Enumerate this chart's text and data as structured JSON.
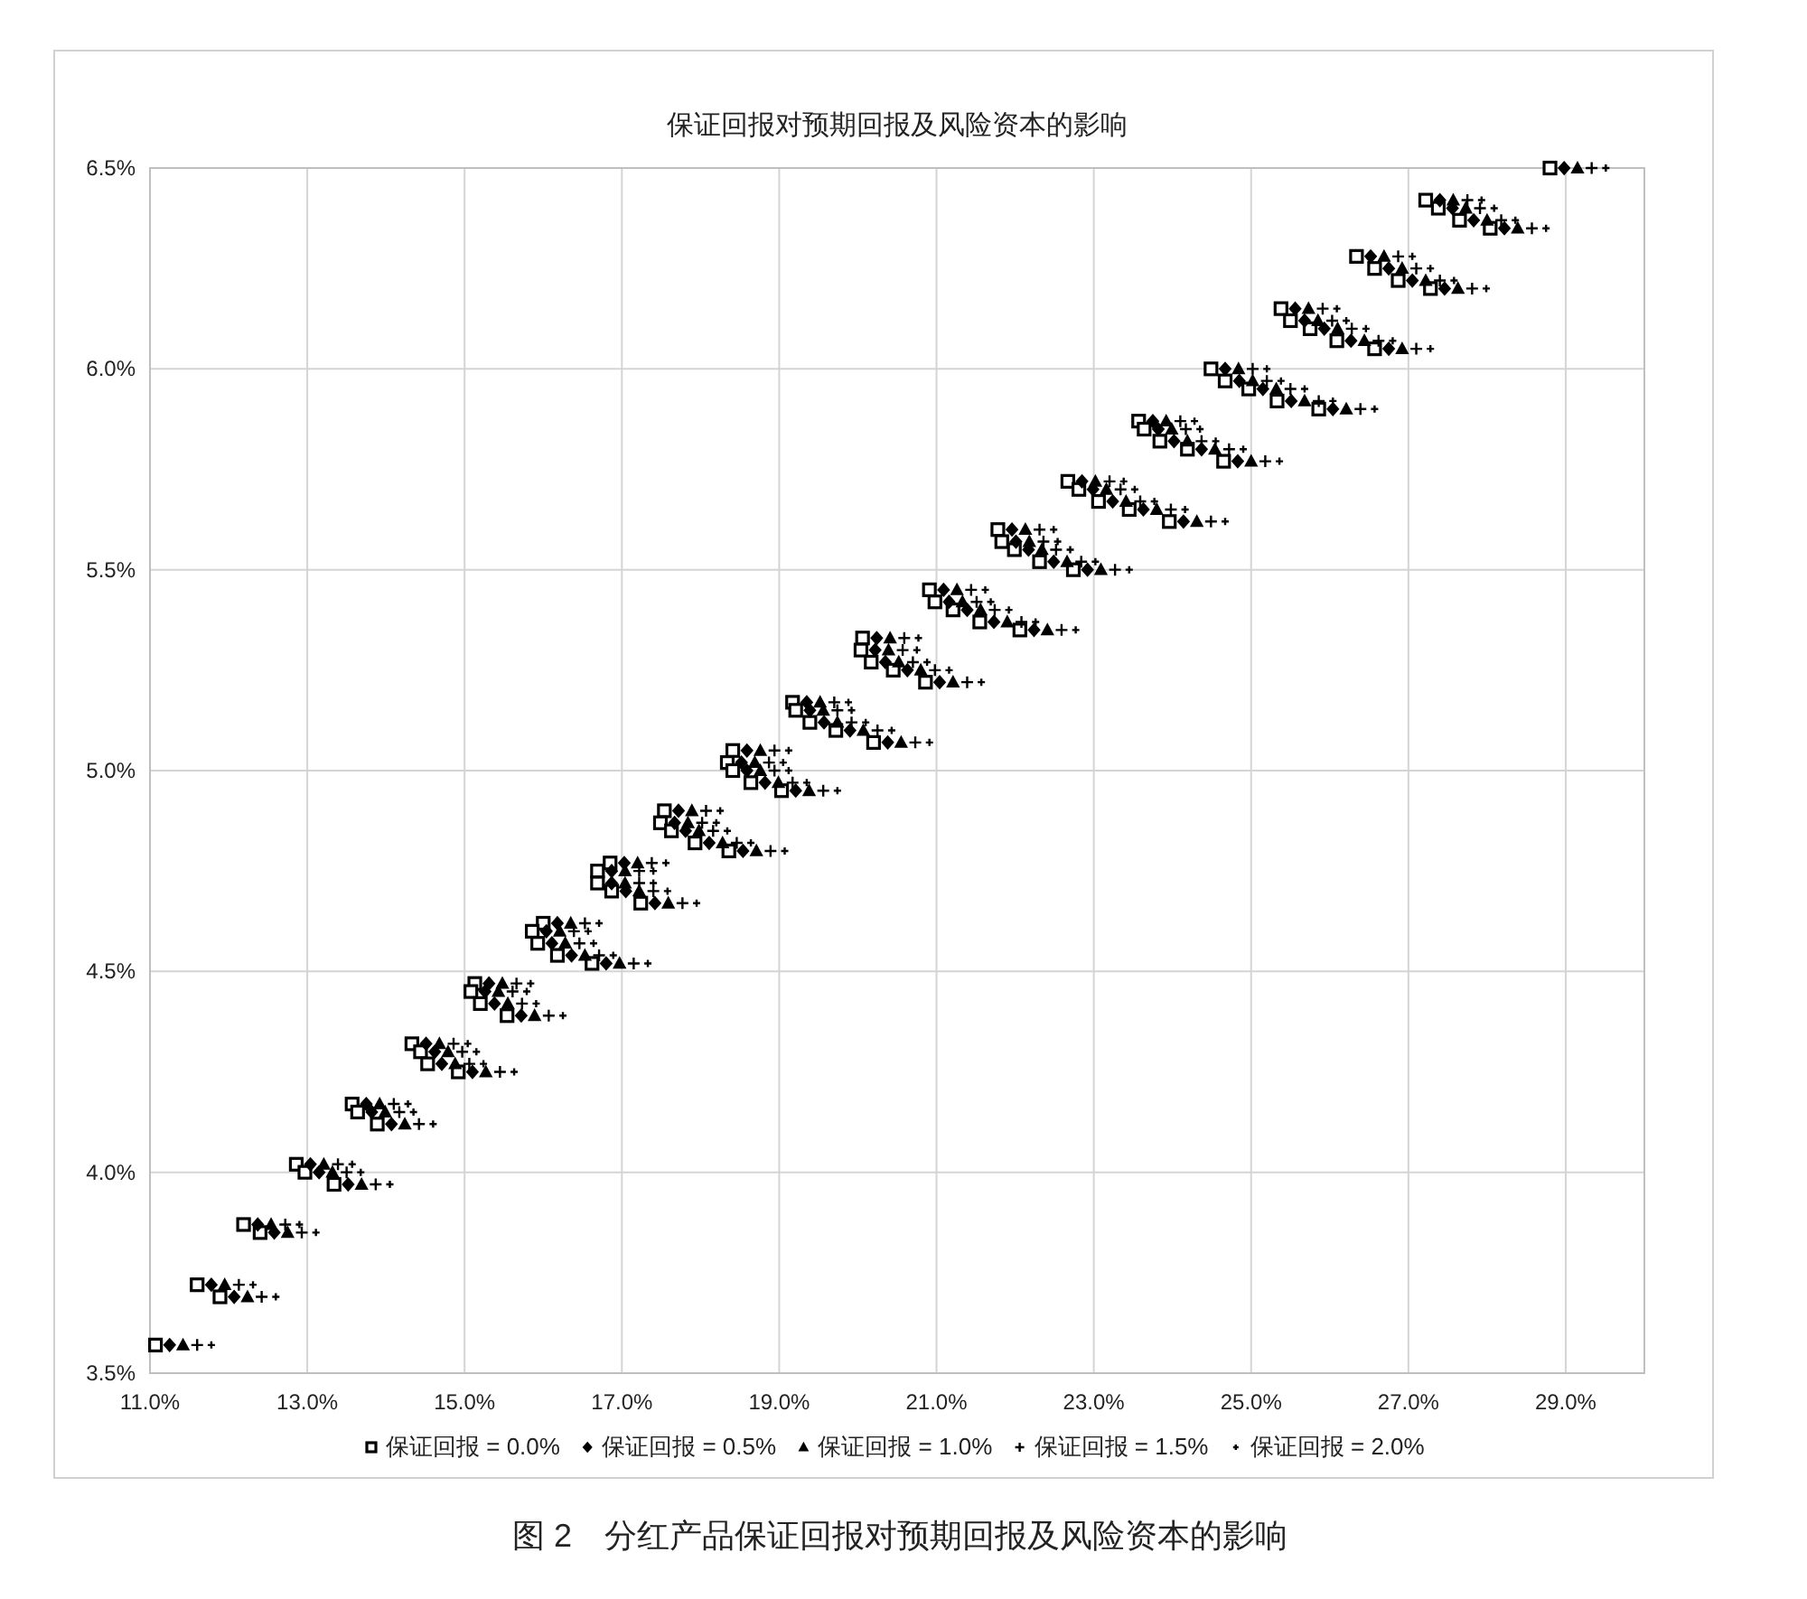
{
  "chart_data": {
    "type": "scatter",
    "title": "保证回报对预期回报及风险资本的影响",
    "annotations": [
      "图 2　分红产品保证回报对预期回报及风险资本的影响"
    ],
    "xlim": [
      11,
      30
    ],
    "ylim": [
      3.5,
      6.5
    ],
    "xticks": [
      {
        "value": 11,
        "label": "11.0%"
      },
      {
        "value": 13,
        "label": "13.0%"
      },
      {
        "value": 15,
        "label": "15.0%"
      },
      {
        "value": 17,
        "label": "17.0%"
      },
      {
        "value": 19,
        "label": "19.0%"
      },
      {
        "value": 21,
        "label": "21.0%"
      },
      {
        "value": 23,
        "label": "23.0%"
      },
      {
        "value": 25,
        "label": "25.0%"
      },
      {
        "value": 27,
        "label": "27.0%"
      },
      {
        "value": 29,
        "label": "29.0%"
      }
    ],
    "yticks": [
      {
        "value": 3.5,
        "label": "3.5%"
      },
      {
        "value": 4,
        "label": "4.0%"
      },
      {
        "value": 4.5,
        "label": "4.5%"
      },
      {
        "value": 5,
        "label": "5.0%"
      },
      {
        "value": 5.5,
        "label": "5.5%"
      },
      {
        "value": 6,
        "label": "6.0%"
      },
      {
        "value": 6.5,
        "label": "6.5%"
      }
    ],
    "grid": true,
    "legend": "bottom",
    "series": [
      {
        "name": "保证回报 = 0.0%",
        "color": "#000000",
        "marker": "square",
        "x": [
          11.07,
          11.6,
          11.89,
          12.19,
          12.4,
          12.86,
          12.97,
          13.34,
          13.57,
          13.64,
          13.89,
          14.33,
          14.44,
          14.53,
          14.92,
          15.13,
          15.08,
          15.2,
          15.54,
          16.0,
          15.86,
          15.93,
          16.18,
          16.62,
          16.85,
          16.69,
          16.69,
          16.87,
          17.24,
          17.54,
          17.49,
          17.63,
          17.93,
          18.36,
          18.41,
          18.34,
          18.41,
          18.64,
          19.03,
          19.17,
          19.21,
          19.39,
          19.72,
          20.2,
          20.06,
          20.04,
          20.17,
          20.45,
          20.86,
          20.91,
          20.98,
          21.21,
          21.55,
          22.06,
          21.78,
          21.83,
          21.99,
          22.31,
          22.74,
          22.67,
          22.81,
          23.06,
          23.45,
          23.96,
          23.57,
          23.64,
          23.84,
          24.19,
          24.65,
          24.49,
          24.67,
          24.97,
          25.33,
          25.86,
          25.38,
          25.5,
          25.75,
          26.09,
          26.57,
          26.34,
          26.57,
          26.87,
          27.28,
          27.22,
          27.38,
          27.65,
          28.04,
          28.8
        ],
        "values": [
          3.57,
          3.72,
          3.69,
          3.87,
          3.85,
          4.02,
          4.0,
          3.97,
          4.17,
          4.15,
          4.12,
          4.32,
          4.3,
          4.27,
          4.25,
          4.47,
          4.45,
          4.42,
          4.39,
          4.62,
          4.6,
          4.57,
          4.54,
          4.52,
          4.77,
          4.75,
          4.72,
          4.7,
          4.67,
          4.9,
          4.87,
          4.85,
          4.82,
          4.8,
          5.05,
          5.02,
          5.0,
          4.97,
          4.95,
          5.17,
          5.15,
          5.12,
          5.1,
          5.07,
          5.33,
          5.3,
          5.27,
          5.25,
          5.22,
          5.45,
          5.42,
          5.4,
          5.37,
          5.35,
          5.6,
          5.57,
          5.55,
          5.52,
          5.5,
          5.72,
          5.7,
          5.67,
          5.65,
          5.62,
          5.87,
          5.85,
          5.82,
          5.8,
          5.77,
          6.0,
          5.97,
          5.95,
          5.92,
          5.9,
          6.15,
          6.12,
          6.1,
          6.07,
          6.05,
          6.28,
          6.25,
          6.22,
          6.2,
          6.42,
          6.4,
          6.37,
          6.35,
          6.5
        ]
      },
      {
        "name": "保证回报 = 0.5%",
        "color": "#000000",
        "marker": "diamond",
        "x": [
          11.25,
          11.78,
          12.07,
          12.37,
          12.58,
          13.04,
          13.15,
          13.52,
          13.75,
          13.82,
          14.07,
          14.51,
          14.62,
          14.71,
          15.1,
          15.31,
          15.26,
          15.38,
          15.72,
          16.18,
          16.04,
          16.11,
          16.36,
          16.8,
          17.03,
          16.87,
          16.87,
          17.05,
          17.42,
          17.72,
          17.67,
          17.81,
          18.11,
          18.54,
          18.59,
          18.52,
          18.59,
          18.82,
          19.21,
          19.35,
          19.39,
          19.57,
          19.9,
          20.38,
          20.24,
          20.22,
          20.35,
          20.63,
          21.04,
          21.09,
          21.16,
          21.39,
          21.73,
          22.24,
          21.96,
          22.01,
          22.17,
          22.49,
          22.92,
          22.85,
          22.99,
          23.24,
          23.63,
          24.14,
          23.75,
          23.82,
          24.02,
          24.37,
          24.83,
          24.67,
          24.85,
          25.15,
          25.51,
          26.04,
          25.56,
          25.68,
          25.93,
          26.27,
          26.75,
          26.52,
          26.75,
          27.05,
          27.46,
          27.4,
          27.56,
          27.83,
          28.22,
          28.98
        ],
        "values": [
          3.57,
          3.72,
          3.69,
          3.87,
          3.85,
          4.02,
          4.0,
          3.97,
          4.17,
          4.15,
          4.12,
          4.32,
          4.3,
          4.27,
          4.25,
          4.47,
          4.45,
          4.42,
          4.39,
          4.62,
          4.6,
          4.57,
          4.54,
          4.52,
          4.77,
          4.75,
          4.72,
          4.7,
          4.67,
          4.9,
          4.87,
          4.85,
          4.82,
          4.8,
          5.05,
          5.02,
          5.0,
          4.97,
          4.95,
          5.17,
          5.15,
          5.12,
          5.1,
          5.07,
          5.33,
          5.3,
          5.27,
          5.25,
          5.22,
          5.45,
          5.42,
          5.4,
          5.37,
          5.35,
          5.6,
          5.57,
          5.55,
          5.52,
          5.5,
          5.72,
          5.7,
          5.67,
          5.65,
          5.62,
          5.87,
          5.85,
          5.82,
          5.8,
          5.77,
          6.0,
          5.97,
          5.95,
          5.92,
          5.9,
          6.15,
          6.12,
          6.1,
          6.07,
          6.05,
          6.28,
          6.25,
          6.22,
          6.2,
          6.42,
          6.4,
          6.37,
          6.35,
          6.5
        ]
      },
      {
        "name": "保证回报 = 1.0%",
        "color": "#000000",
        "marker": "triangle",
        "x": [
          11.42,
          11.95,
          12.24,
          12.54,
          12.75,
          13.21,
          13.32,
          13.69,
          13.92,
          13.99,
          14.24,
          14.68,
          14.79,
          14.88,
          15.27,
          15.48,
          15.43,
          15.55,
          15.89,
          16.35,
          16.21,
          16.28,
          16.53,
          16.97,
          17.2,
          17.04,
          17.04,
          17.22,
          17.59,
          17.89,
          17.84,
          17.98,
          18.28,
          18.71,
          18.76,
          18.69,
          18.76,
          18.99,
          19.38,
          19.52,
          19.56,
          19.74,
          20.07,
          20.55,
          20.41,
          20.39,
          20.52,
          20.8,
          21.21,
          21.26,
          21.33,
          21.56,
          21.9,
          22.41,
          22.13,
          22.18,
          22.34,
          22.66,
          23.09,
          23.02,
          23.16,
          23.41,
          23.8,
          24.31,
          23.92,
          23.99,
          24.19,
          24.54,
          25.0,
          24.84,
          25.02,
          25.32,
          25.68,
          26.21,
          25.73,
          25.85,
          26.1,
          26.44,
          26.92,
          26.69,
          26.92,
          27.22,
          27.63,
          27.57,
          27.73,
          28.0,
          28.39,
          29.15
        ],
        "values": [
          3.57,
          3.72,
          3.69,
          3.87,
          3.85,
          4.02,
          4.0,
          3.97,
          4.17,
          4.15,
          4.12,
          4.32,
          4.3,
          4.27,
          4.25,
          4.47,
          4.45,
          4.42,
          4.39,
          4.62,
          4.6,
          4.57,
          4.54,
          4.52,
          4.77,
          4.75,
          4.72,
          4.7,
          4.67,
          4.9,
          4.87,
          4.85,
          4.82,
          4.8,
          5.05,
          5.02,
          5.0,
          4.97,
          4.95,
          5.17,
          5.15,
          5.12,
          5.1,
          5.07,
          5.33,
          5.3,
          5.27,
          5.25,
          5.22,
          5.45,
          5.42,
          5.4,
          5.37,
          5.35,
          5.6,
          5.57,
          5.55,
          5.52,
          5.5,
          5.72,
          5.7,
          5.67,
          5.65,
          5.62,
          5.87,
          5.85,
          5.82,
          5.8,
          5.77,
          6.0,
          5.97,
          5.95,
          5.92,
          5.9,
          6.15,
          6.12,
          6.1,
          6.07,
          6.05,
          6.28,
          6.25,
          6.22,
          6.2,
          6.42,
          6.4,
          6.37,
          6.35,
          6.5
        ]
      },
      {
        "name": "保证回报 = 1.5%",
        "color": "#000000",
        "marker": "cross",
        "x": [
          11.6,
          12.13,
          12.42,
          12.72,
          12.93,
          13.39,
          13.5,
          13.87,
          14.1,
          14.17,
          14.42,
          14.86,
          14.97,
          15.06,
          15.45,
          15.66,
          15.61,
          15.73,
          16.07,
          16.53,
          16.39,
          16.46,
          16.71,
          17.15,
          17.38,
          17.22,
          17.22,
          17.4,
          17.77,
          18.07,
          18.02,
          18.16,
          18.46,
          18.89,
          18.94,
          18.87,
          18.94,
          19.17,
          19.56,
          19.7,
          19.74,
          19.92,
          20.25,
          20.73,
          20.59,
          20.57,
          20.7,
          20.98,
          21.39,
          21.44,
          21.51,
          21.74,
          22.08,
          22.59,
          22.31,
          22.36,
          22.52,
          22.84,
          23.27,
          23.2,
          23.34,
          23.59,
          23.98,
          24.49,
          24.1,
          24.17,
          24.37,
          24.72,
          25.18,
          25.02,
          25.2,
          25.5,
          25.86,
          26.39,
          25.91,
          26.03,
          26.28,
          26.62,
          27.1,
          26.87,
          27.1,
          27.4,
          27.81,
          27.75,
          27.91,
          28.18,
          28.57,
          29.33
        ],
        "values": [
          3.57,
          3.72,
          3.69,
          3.87,
          3.85,
          4.02,
          4.0,
          3.97,
          4.17,
          4.15,
          4.12,
          4.32,
          4.3,
          4.27,
          4.25,
          4.47,
          4.45,
          4.42,
          4.39,
          4.62,
          4.6,
          4.57,
          4.54,
          4.52,
          4.77,
          4.75,
          4.72,
          4.7,
          4.67,
          4.9,
          4.87,
          4.85,
          4.82,
          4.8,
          5.05,
          5.02,
          5.0,
          4.97,
          4.95,
          5.17,
          5.15,
          5.12,
          5.1,
          5.07,
          5.33,
          5.3,
          5.27,
          5.25,
          5.22,
          5.45,
          5.42,
          5.4,
          5.37,
          5.35,
          5.6,
          5.57,
          5.55,
          5.52,
          5.5,
          5.72,
          5.7,
          5.67,
          5.65,
          5.62,
          5.87,
          5.85,
          5.82,
          5.8,
          5.77,
          6.0,
          5.97,
          5.95,
          5.92,
          5.9,
          6.15,
          6.12,
          6.1,
          6.07,
          6.05,
          6.28,
          6.25,
          6.22,
          6.2,
          6.42,
          6.4,
          6.37,
          6.35,
          6.5
        ]
      },
      {
        "name": "保证回报 = 2.0%",
        "color": "#000000",
        "marker": "cross",
        "x": [
          11.78,
          12.31,
          12.6,
          12.9,
          13.11,
          13.57,
          13.68,
          14.05,
          14.28,
          14.35,
          14.6,
          15.04,
          15.15,
          15.24,
          15.63,
          15.84,
          15.79,
          15.91,
          16.25,
          16.71,
          16.57,
          16.64,
          16.89,
          17.33,
          17.56,
          17.4,
          17.4,
          17.58,
          17.95,
          18.25,
          18.2,
          18.34,
          18.64,
          19.07,
          19.12,
          19.05,
          19.12,
          19.35,
          19.74,
          19.88,
          19.92,
          20.1,
          20.43,
          20.91,
          20.77,
          20.75,
          20.88,
          21.16,
          21.57,
          21.62,
          21.69,
          21.92,
          22.26,
          22.77,
          22.49,
          22.54,
          22.7,
          23.02,
          23.45,
          23.38,
          23.52,
          23.77,
          24.16,
          24.67,
          24.28,
          24.35,
          24.55,
          24.9,
          25.36,
          25.2,
          25.38,
          25.68,
          26.04,
          26.57,
          26.09,
          26.21,
          26.46,
          26.8,
          27.28,
          27.05,
          27.28,
          27.58,
          27.99,
          27.93,
          28.09,
          28.36,
          28.75,
          29.51
        ],
        "values": [
          3.57,
          3.72,
          3.69,
          3.87,
          3.85,
          4.02,
          4.0,
          3.97,
          4.17,
          4.15,
          4.12,
          4.32,
          4.3,
          4.27,
          4.25,
          4.47,
          4.45,
          4.42,
          4.39,
          4.62,
          4.6,
          4.57,
          4.54,
          4.52,
          4.77,
          4.75,
          4.72,
          4.7,
          4.67,
          4.9,
          4.87,
          4.85,
          4.82,
          4.8,
          5.05,
          5.02,
          5.0,
          4.97,
          4.95,
          5.17,
          5.15,
          5.12,
          5.1,
          5.07,
          5.33,
          5.3,
          5.27,
          5.25,
          5.22,
          5.45,
          5.42,
          5.4,
          5.37,
          5.35,
          5.6,
          5.57,
          5.55,
          5.52,
          5.5,
          5.72,
          5.7,
          5.67,
          5.65,
          5.62,
          5.87,
          5.85,
          5.82,
          5.8,
          5.77,
          6.0,
          5.97,
          5.95,
          5.92,
          5.9,
          6.15,
          6.12,
          6.1,
          6.07,
          6.05,
          6.28,
          6.25,
          6.22,
          6.2,
          6.42,
          6.4,
          6.37,
          6.35,
          6.5
        ]
      }
    ]
  }
}
